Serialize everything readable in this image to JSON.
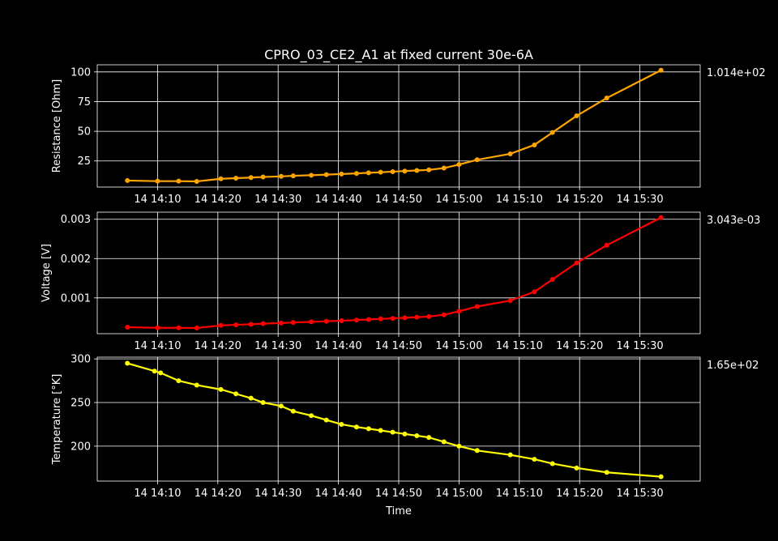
{
  "figure": {
    "title": "CPRO_03_CE2_A1 at fixed current 30e-6A",
    "background": "#000000",
    "foreground": "#ffffff"
  },
  "chart_data": [
    {
      "type": "line",
      "ylabel": "Resistance [Ohm]",
      "xlabel": "",
      "color": "#ffa500",
      "grid": true,
      "x_unit": "minute",
      "xlim": [
        "14 14:00",
        "15:40"
      ],
      "ylim": [
        3,
        106
      ],
      "xticks": [
        "14 14:10",
        "14 14:20",
        "14 14:30",
        "14 14:40",
        "14 14:50",
        "14 15:00",
        "14 15:10",
        "14 15:20",
        "14 15:30"
      ],
      "yticks": [
        25,
        50,
        75,
        100
      ],
      "ytick_labels": [
        "25",
        "50",
        "75",
        "100"
      ],
      "last_value_label": "1.014e+02",
      "series": [
        {
          "x": [
            "14:05",
            "14:10",
            "14:13.5",
            "14:16.5",
            "14:20.5",
            "14:23",
            "14:25.5",
            "14:27.5",
            "14:30.5",
            "14:32.5",
            "14:35.5",
            "14:38",
            "14:40.5",
            "14:43",
            "14:45",
            "14:47",
            "14:49",
            "14:51",
            "14:53",
            "14:55",
            "14:57.5",
            "15:00",
            "15:03",
            "15:08.5",
            "15:12.5",
            "15:15.5",
            "15:19.5",
            "15:24.5",
            "15:33.5"
          ],
          "y": [
            8.5,
            8,
            8,
            7.8,
            10,
            10.5,
            11,
            11.5,
            12,
            12.5,
            13,
            13.5,
            14,
            14.5,
            15,
            15.5,
            16,
            16.5,
            17,
            17.5,
            19,
            22,
            26,
            31,
            38.5,
            49,
            63,
            78,
            101.4
          ]
        }
      ]
    },
    {
      "type": "line",
      "ylabel": "Voltage [V]",
      "xlabel": "",
      "color": "#ff0000",
      "grid": true,
      "x_unit": "minute",
      "xlim": [
        "14 14:00",
        "15:40"
      ],
      "ylim": [
        9e-05,
        0.00318
      ],
      "xticks": [
        "14 14:10",
        "14 14:20",
        "14 14:30",
        "14 14:40",
        "14 14:50",
        "14 15:00",
        "14 15:10",
        "14 15:20",
        "14 15:30"
      ],
      "yticks": [
        0.001,
        0.002,
        0.003
      ],
      "ytick_labels": [
        "0.001",
        "0.002",
        "0.003"
      ],
      "last_value_label": "3.043e-03",
      "series": [
        {
          "x": [
            "14:05",
            "14:10",
            "14:13.5",
            "14:16.5",
            "14:20.5",
            "14:23",
            "14:25.5",
            "14:27.5",
            "14:30.5",
            "14:32.5",
            "14:35.5",
            "14:38",
            "14:40.5",
            "14:43",
            "14:45",
            "14:47",
            "14:49",
            "14:51",
            "14:53",
            "14:55",
            "14:57.5",
            "15:00",
            "15:03",
            "15:08.5",
            "15:12.5",
            "15:15.5",
            "15:19.5",
            "15:24.5",
            "15:33.5"
          ],
          "y": [
            0.000255,
            0.00024,
            0.00024,
            0.000234,
            0.0003,
            0.000315,
            0.00033,
            0.000345,
            0.00036,
            0.000375,
            0.00039,
            0.000405,
            0.00042,
            0.000435,
            0.00045,
            0.000465,
            0.00048,
            0.000495,
            0.00051,
            0.000525,
            0.00057,
            0.00066,
            0.00078,
            0.00093,
            0.001155,
            0.00147,
            0.00189,
            0.00234,
            0.003043
          ]
        }
      ]
    },
    {
      "type": "line",
      "ylabel": "Temperature [°K]",
      "xlabel": "Time",
      "color": "#ffff00",
      "grid": true,
      "x_unit": "minute",
      "xlim": [
        "14 14:00",
        "15:40"
      ],
      "ylim": [
        160,
        302
      ],
      "xticks": [
        "14 14:10",
        "14 14:20",
        "14 14:30",
        "14 14:40",
        "14 14:50",
        "14 15:00",
        "14 15:10",
        "14 15:20",
        "14 15:30"
      ],
      "yticks": [
        200,
        250,
        300
      ],
      "ytick_labels": [
        "200",
        "250",
        "300"
      ],
      "last_value_label": "1.65e+02",
      "series": [
        {
          "x": [
            "14:05",
            "14:09.5",
            "14:10.5",
            "14:13.5",
            "14:16.5",
            "14:20.5",
            "14:23",
            "14:25.5",
            "14:27.5",
            "14:30.5",
            "14:32.5",
            "14:35.5",
            "14:38",
            "14:40.5",
            "14:43",
            "14:45",
            "14:47",
            "14:49",
            "14:51",
            "14:53",
            "14:55",
            "14:57.5",
            "15:00",
            "15:03",
            "15:08.5",
            "15:12.5",
            "15:15.5",
            "15:19.5",
            "15:24.5",
            "15:33.5"
          ],
          "y": [
            295,
            286,
            284,
            275,
            270,
            265,
            260,
            255,
            250,
            246,
            240,
            235,
            230,
            225,
            222,
            220,
            218,
            216,
            214,
            212,
            210,
            205,
            200,
            195,
            190,
            185,
            180,
            175,
            170,
            165
          ]
        }
      ]
    }
  ]
}
